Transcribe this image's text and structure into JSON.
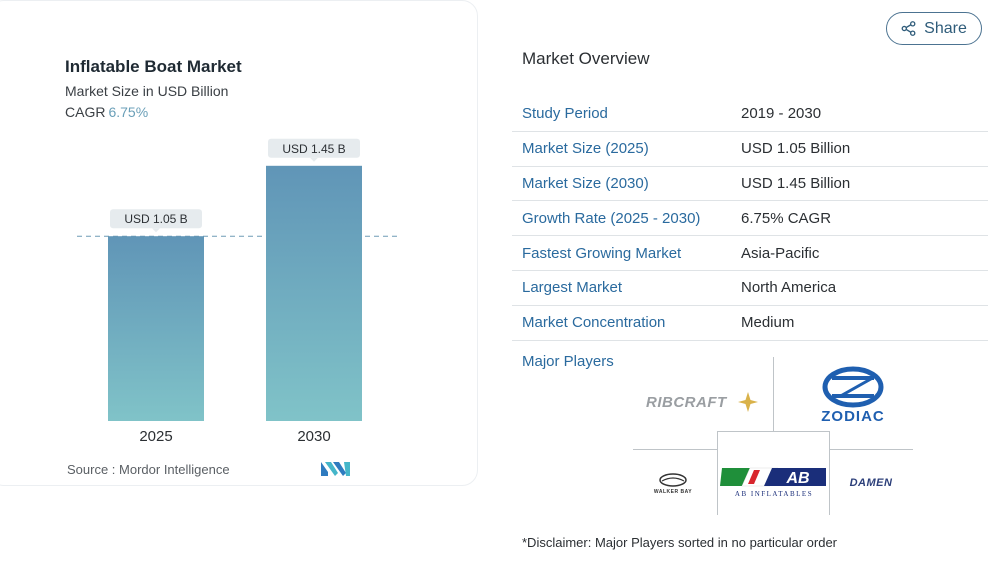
{
  "chart": {
    "title": "Inflatable Boat Market",
    "subtitle": "Market Size in USD Billion",
    "cagr_label": "CAGR",
    "cagr_value": "6.75%",
    "source": "Source :  Mordor Intelligence",
    "logo_icon": "mordor-intelligence-logo",
    "bar_color_top": "#6095b7",
    "bar_color_bottom": "#80c3c8"
  },
  "chart_data": {
    "type": "bar",
    "title": "Inflatable Boat Market",
    "subtitle": "Market Size in USD Billion",
    "categories": [
      "2025",
      "2030"
    ],
    "values": [
      1.05,
      1.45
    ],
    "data_labels": [
      "USD 1.05 B",
      "USD 1.45 B"
    ],
    "ylabel": "",
    "xlabel": "",
    "ylim": [
      0,
      1.75
    ],
    "reference_line": 1.05,
    "grid": false
  },
  "share": {
    "label": "Share",
    "icon": "share-icon"
  },
  "overview": {
    "title": "Market Overview",
    "rows": [
      {
        "label": "Study Period",
        "value": "2019 - 2030"
      },
      {
        "label": "Market Size (2025)",
        "value": "USD 1.05 Billion"
      },
      {
        "label": "Market Size (2030)",
        "value": "USD 1.45 Billion"
      },
      {
        "label": "Growth Rate (2025 - 2030)",
        "value": "6.75% CAGR"
      },
      {
        "label": "Fastest Growing Market",
        "value": "Asia-Pacific"
      },
      {
        "label": "Largest Market",
        "value": "North America"
      },
      {
        "label": "Market Concentration",
        "value": "Medium"
      }
    ],
    "players_label": "Major Players",
    "players": [
      {
        "name": "RIBCRAFT",
        "icon": "ribcraft-logo"
      },
      {
        "name": "ZODIAC",
        "icon": "zodiac-logo"
      },
      {
        "name": "WALKER BAY",
        "icon": "walker-bay-logo"
      },
      {
        "name": "AB INFLATABLES",
        "icon": "ab-inflatables-logo"
      },
      {
        "name": "DAMEN",
        "icon": "damen-logo"
      }
    ],
    "disclaimer": "*Disclaimer: Major Players sorted in no particular order"
  }
}
